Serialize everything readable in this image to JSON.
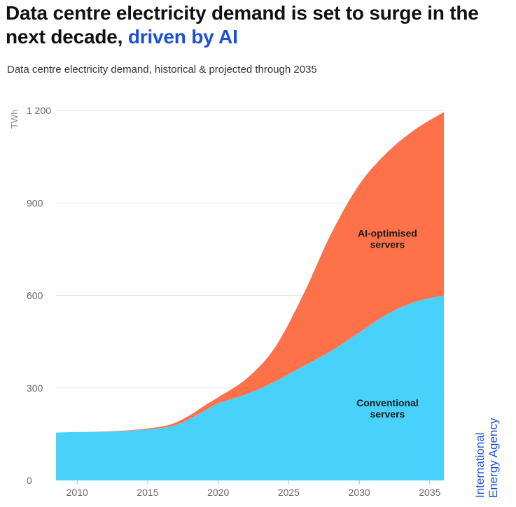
{
  "title": {
    "main": "Data centre electricity demand is set to surge in the next decade,",
    "highlight": "driven by AI"
  },
  "subtitle": "Data centre electricity demand, historical & projected through 2035",
  "source": {
    "line1": "International",
    "line2": "Energy Agency"
  },
  "colors": {
    "ai": "#ff7148",
    "conventional": "#47d1fb",
    "grid": "#e5e5e5",
    "accent": "#1f4fd6"
  },
  "chart_data": {
    "type": "area",
    "stacked": true,
    "x": [
      2008.5,
      2010,
      2012,
      2014,
      2016,
      2017,
      2018,
      2019,
      2020,
      2022,
      2024,
      2026,
      2028,
      2030,
      2032,
      2034,
      2036
    ],
    "series": [
      {
        "name": "Conventional servers",
        "label_lines": [
          "Conventional",
          "servers"
        ],
        "label_position": {
          "x": 2032,
          "y": 240
        },
        "values": [
          155,
          157,
          158,
          162,
          170,
          180,
          200,
          225,
          250,
          280,
          320,
          370,
          420,
          480,
          540,
          580,
          600
        ]
      },
      {
        "name": "AI-optimised servers",
        "label_lines": [
          "AI-optimised",
          "servers"
        ],
        "label_position": {
          "x": 2032,
          "y": 790
        },
        "values": [
          0,
          0,
          1,
          2,
          5,
          8,
          12,
          17,
          20,
          50,
          110,
          230,
          380,
          480,
          525,
          560,
          595
        ]
      }
    ],
    "xlim": [
      2008.5,
      2036
    ],
    "ylim": [
      0,
      1200
    ],
    "x_ticks": [
      2010,
      2015,
      2020,
      2025,
      2030,
      2035
    ],
    "y_ticks": [
      0,
      300,
      600,
      900,
      1200
    ],
    "y_tick_labels": [
      "0",
      "300",
      "600",
      "900",
      "1 200"
    ],
    "ylabel": "TWh",
    "xlabel": "",
    "grid": true
  }
}
